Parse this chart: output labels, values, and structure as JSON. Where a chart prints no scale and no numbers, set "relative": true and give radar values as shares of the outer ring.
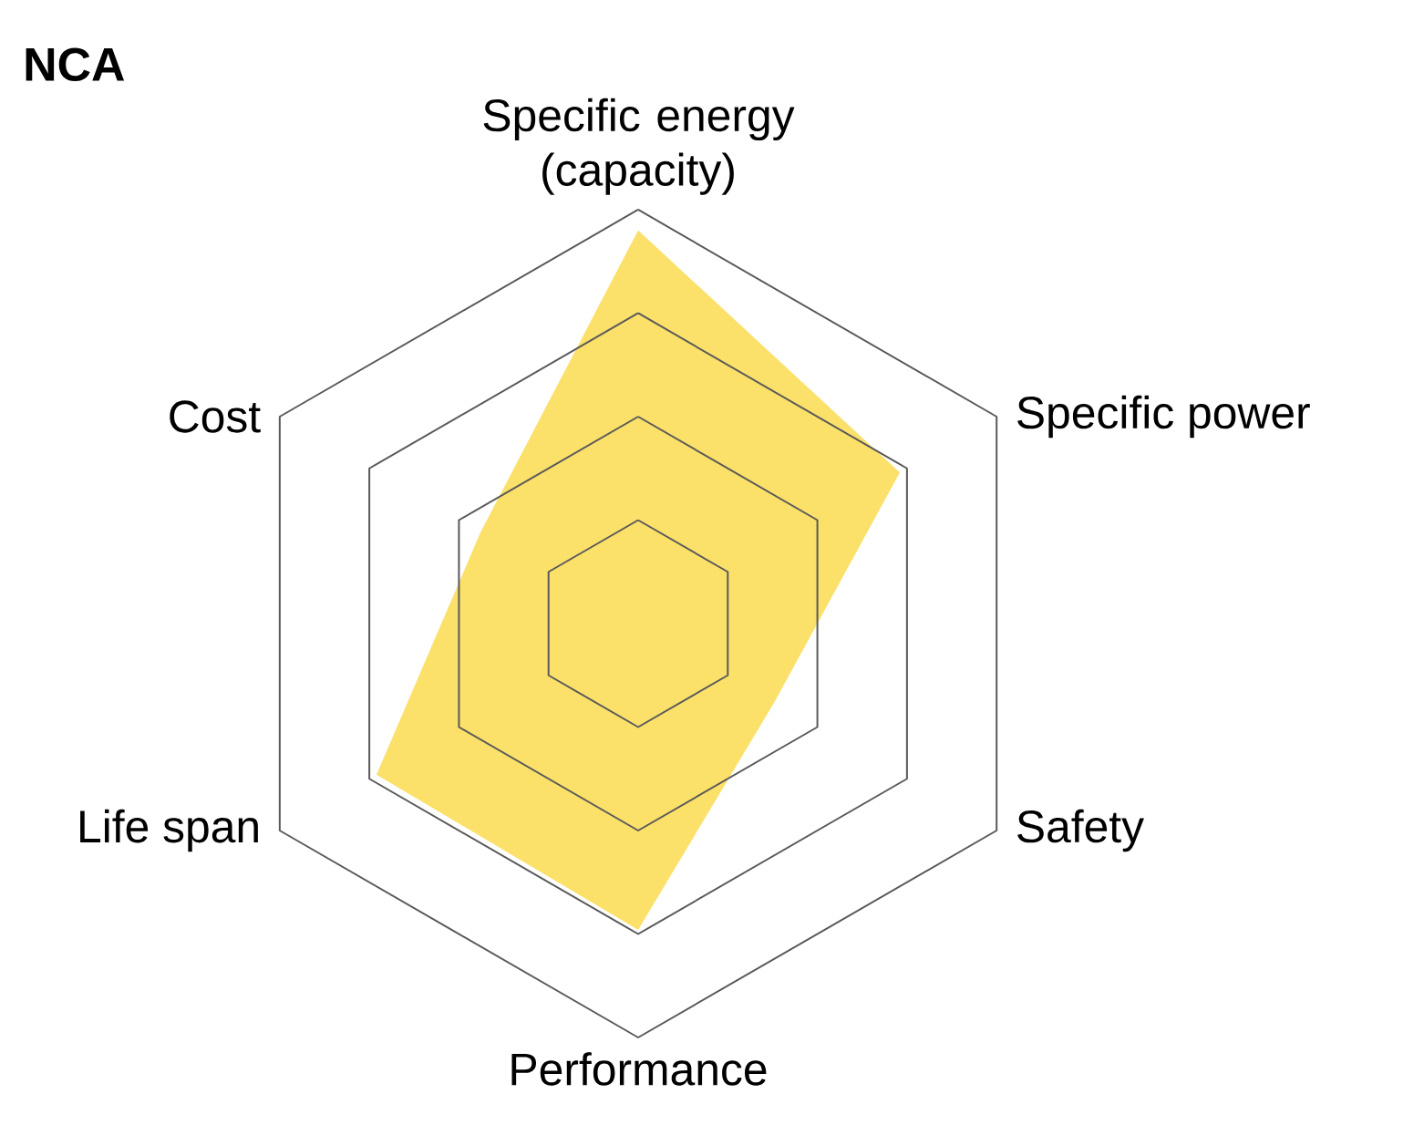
{
  "chart_data": {
    "type": "radar",
    "title": "NCA",
    "relative": true,
    "grid": true,
    "categories": [
      "Specific energy (capacity)",
      "Specific power",
      "Safety",
      "Performance",
      "Life span",
      "Cost"
    ],
    "series": [
      {
        "color": "#fbe06a",
        "values": [
          0.95,
          0.73,
          0.38,
          0.74,
          0.73,
          0.44
        ]
      }
    ]
  }
}
